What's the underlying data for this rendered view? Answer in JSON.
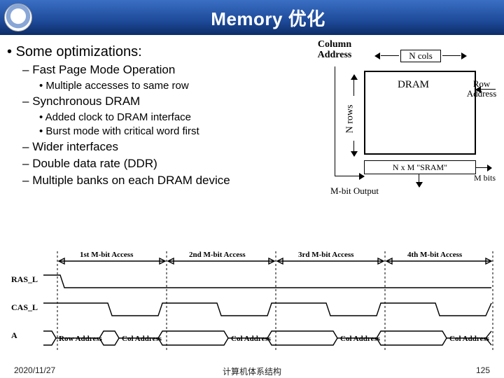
{
  "title": "Memory 优化",
  "bullets": {
    "heading": "Some optimizations:",
    "fast_page": "Fast Page Mode Operation",
    "fast_page_sub": "Multiple accesses to same row",
    "sdram": "Synchronous DRAM",
    "sdram_sub1": "Added clock to DRAM interface",
    "sdram_sub2": "Burst mode with critical word first",
    "wider": "Wider interfaces",
    "ddr": "Double data rate (DDR)",
    "banks": "Multiple banks on each DRAM device"
  },
  "dram": {
    "column_address": "Column\nAddress",
    "n_cols": "N cols",
    "n_rows": "N rows",
    "label": "DRAM",
    "row_address": "Row\nAddress",
    "sram": "N x M \"SRAM\"",
    "m_bits": "M bits",
    "m_bit_output": "M-bit Output",
    "colors": {
      "line": "#000000",
      "bg": "#ffffff"
    },
    "font_family": "Times New Roman"
  },
  "timing": {
    "accesses": [
      "1st M-bit Access",
      "2nd M-bit Access",
      "3rd M-bit Access",
      "4th M-bit Access"
    ],
    "signals": [
      "RAS_L",
      "CAS_L",
      "A"
    ],
    "a_labels": [
      "Row Address",
      "Col Address",
      "Col Address",
      "Col Address",
      "Col Address"
    ],
    "colors": {
      "stroke": "#000000"
    },
    "line_width": 1.4,
    "x_divisions": [
      0,
      88,
      260,
      432,
      604,
      692
    ],
    "row_heights": {
      "header": 14,
      "signal": 28
    },
    "dash_pattern": "3 3"
  },
  "footer": {
    "date": "2020/11/27",
    "center": "计算机体系结构",
    "page": "125"
  }
}
